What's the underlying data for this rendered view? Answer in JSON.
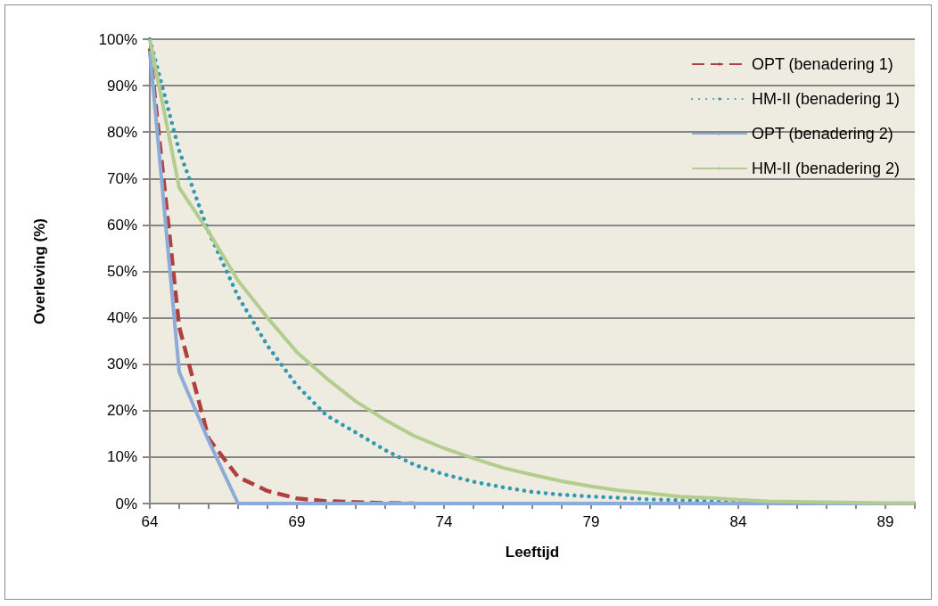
{
  "chart_data": {
    "type": "line",
    "xlabel": "Leeftijd",
    "ylabel": "Overleving (%)",
    "x": [
      64,
      65,
      66,
      67,
      68,
      69,
      70,
      71,
      72,
      73,
      74,
      75,
      76,
      77,
      78,
      79,
      80,
      81,
      82,
      83,
      84,
      85,
      86,
      87,
      88,
      89,
      90
    ],
    "series": [
      {
        "name": "OPT (benadering 1)",
        "color": "#b0403d",
        "line_style": "dashed",
        "values": [
          98,
          38,
          14,
          5.7,
          2.7,
          1.1,
          0.5,
          0.3,
          0.1,
          0,
          null,
          null,
          null,
          null,
          null,
          null,
          null,
          null,
          null,
          null,
          null,
          null,
          null,
          null,
          null,
          null,
          null
        ]
      },
      {
        "name": "HM-II (benadering 1)",
        "color": "#3399b3",
        "line_style": "dotted",
        "values": [
          100,
          76,
          58.5,
          44.6,
          34,
          25.4,
          19,
          15.3,
          11.5,
          8.3,
          6.3,
          4.7,
          3.5,
          2.5,
          1.9,
          1.5,
          1.2,
          0.9,
          0.7,
          0.5,
          0.3,
          0.2,
          0.1,
          0.1,
          0,
          0,
          0
        ]
      },
      {
        "name": "OPT (benadering 2)",
        "color": "#8eaad8",
        "line_style": "solid",
        "values": [
          97.5,
          28.3,
          13.5,
          0,
          0,
          0,
          0,
          0,
          0,
          0,
          0,
          0,
          0,
          0,
          0,
          0,
          0,
          0,
          0,
          0,
          0,
          0,
          0,
          0,
          0,
          0,
          0
        ]
      },
      {
        "name": "HM-II (benadering 2)",
        "color": "#b3cd8f",
        "line_style": "solid",
        "values": [
          100,
          68,
          58.5,
          48,
          40,
          32.6,
          27,
          22,
          18,
          14.5,
          11.9,
          9.7,
          7.7,
          6.2,
          4.8,
          3.7,
          2.8,
          2.2,
          1.5,
          1.2,
          0.8,
          0.5,
          0.4,
          0.3,
          0.2,
          0.1,
          0.1
        ]
      }
    ],
    "xlim": [
      64,
      90
    ],
    "xticks": [
      64,
      {
        "value": 65,
        "label": null
      },
      {
        "value": 66,
        "label": null
      },
      {
        "value": 67,
        "label": null
      },
      {
        "value": 68,
        "label": null
      },
      69,
      {
        "value": 70,
        "label": null
      },
      {
        "value": 71,
        "label": null
      },
      {
        "value": 72,
        "label": null
      },
      {
        "value": 73,
        "label": null
      },
      74,
      {
        "value": 75,
        "label": null
      },
      {
        "value": 76,
        "label": null
      },
      {
        "value": 77,
        "label": null
      },
      {
        "value": 78,
        "label": null
      },
      79,
      {
        "value": 80,
        "label": null
      },
      {
        "value": 81,
        "label": null
      },
      {
        "value": 82,
        "label": null
      },
      {
        "value": 83,
        "label": null
      },
      84,
      {
        "value": 85,
        "label": null
      },
      {
        "value": 86,
        "label": null
      },
      {
        "value": 87,
        "label": null
      },
      {
        "value": 88,
        "label": null
      },
      89,
      {
        "value": 90,
        "label": null
      }
    ],
    "ylim": [
      0,
      100
    ],
    "yticks": [
      {
        "value": 0,
        "label": "0%"
      },
      {
        "value": 10,
        "label": "10%"
      },
      {
        "value": 20,
        "label": "20%"
      },
      {
        "value": 30,
        "label": "30%"
      },
      {
        "value": 40,
        "label": "40%"
      },
      {
        "value": 50,
        "label": "50%"
      },
      {
        "value": 60,
        "label": "60%"
      },
      {
        "value": 70,
        "label": "70%"
      },
      {
        "value": 80,
        "label": "80%"
      },
      {
        "value": 90,
        "label": "90%"
      },
      {
        "value": 100,
        "label": "100%"
      }
    ],
    "grid": "y",
    "legend": "top right",
    "marker": "none"
  }
}
